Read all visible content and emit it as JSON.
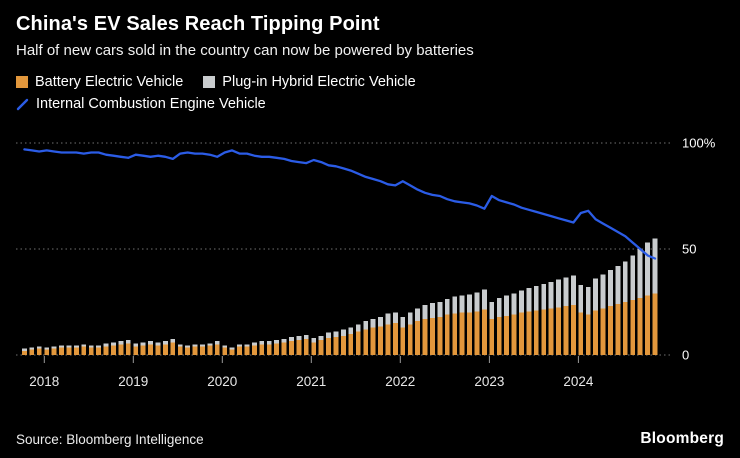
{
  "header": {
    "title": "China's EV Sales Reach Tipping Point",
    "subtitle": "Half of new cars sold in the country can now be powered by batteries"
  },
  "legend": {
    "bev": "Battery Electric Vehicle",
    "phev": "Plug-in Hybrid Electric Vehicle",
    "ice": "Internal Combustion Engine Vehicle"
  },
  "chart_data": {
    "type": "bar",
    "subtype": "stacked-monthly-bars-with-line",
    "x_frequency": "monthly",
    "x_start": "2017-10",
    "x_end": "2024-11",
    "x_tick_labels": [
      "2018",
      "2019",
      "2020",
      "2021",
      "2022",
      "2023",
      "2024"
    ],
    "y_tick_labels": [
      "100%",
      "50",
      "0"
    ],
    "y_tick_values": [
      100,
      50,
      0
    ],
    "ylim": [
      0,
      100
    ],
    "y_unit": "%",
    "grid": "dotted horizontal lines at 0, 50, 100",
    "legend_position": "top-left",
    "series": [
      {
        "name": "Battery Electric Vehicle",
        "color": "#E2973C",
        "values": [
          2.0,
          2.5,
          3.0,
          2.5,
          3.0,
          3.5,
          3.5,
          3.5,
          4.0,
          3.5,
          3.5,
          4.0,
          4.5,
          5.0,
          5.5,
          4.0,
          4.5,
          5.0,
          4.5,
          5.0,
          6.0,
          4.0,
          3.5,
          4.0,
          4.0,
          4.5,
          5.0,
          3.5,
          2.5,
          4.0,
          4.0,
          4.5,
          5.0,
          5.0,
          5.5,
          6.0,
          6.5,
          7.0,
          7.5,
          6.0,
          7.0,
          8.0,
          8.5,
          9.0,
          10.0,
          11.0,
          12.0,
          13.0,
          13.5,
          14.5,
          15.0,
          13.0,
          14.5,
          16.0,
          17.0,
          17.5,
          18.0,
          19.0,
          19.5,
          20.0,
          20.0,
          20.5,
          21.5,
          17.0,
          18.0,
          18.5,
          19.0,
          20.0,
          20.5,
          21.0,
          21.5,
          22.0,
          22.5,
          23.0,
          23.5,
          20.0,
          19.0,
          21.0,
          22.0,
          23.0,
          24.0,
          25.0,
          26.0,
          27.0,
          28.0,
          29.0
        ]
      },
      {
        "name": "Plug-in Hybrid Electric Vehicle",
        "color": "#C9CCCE",
        "values": [
          1.0,
          1.0,
          1.0,
          1.0,
          1.0,
          1.0,
          1.0,
          1.0,
          1.0,
          1.0,
          1.0,
          1.5,
          1.5,
          1.5,
          1.5,
          1.5,
          1.5,
          1.5,
          1.5,
          1.5,
          1.5,
          1.0,
          1.0,
          1.0,
          1.0,
          1.0,
          1.5,
          1.0,
          1.0,
          1.0,
          1.0,
          1.5,
          1.5,
          1.5,
          1.5,
          1.5,
          2.0,
          2.0,
          2.0,
          2.0,
          2.0,
          2.5,
          2.5,
          3.0,
          3.0,
          3.5,
          4.0,
          4.0,
          4.5,
          5.0,
          5.0,
          5.0,
          5.5,
          6.0,
          6.5,
          7.0,
          7.0,
          7.5,
          8.0,
          8.0,
          8.5,
          9.0,
          9.5,
          8.0,
          9.0,
          9.5,
          10.0,
          10.5,
          11.0,
          11.5,
          12.0,
          12.5,
          13.0,
          13.5,
          14.0,
          13.0,
          13.0,
          15.0,
          16.0,
          17.0,
          18.0,
          19.0,
          21.0,
          23.0,
          25.0,
          26.0
        ]
      }
    ],
    "line_series": {
      "name": "Internal Combustion Engine Vehicle",
      "color": "#2B5CE6",
      "values": [
        97.0,
        96.5,
        96.0,
        96.5,
        96.0,
        95.5,
        95.5,
        95.5,
        95.0,
        95.5,
        95.5,
        94.5,
        94.0,
        93.5,
        93.0,
        94.5,
        94.0,
        93.5,
        94.0,
        93.5,
        92.5,
        95.0,
        95.5,
        95.0,
        95.0,
        94.5,
        93.5,
        95.5,
        96.5,
        95.0,
        95.0,
        94.0,
        93.5,
        93.5,
        93.0,
        92.5,
        91.5,
        91.0,
        90.5,
        92.0,
        91.0,
        89.5,
        89.0,
        88.0,
        87.0,
        85.5,
        84.0,
        83.0,
        82.0,
        80.5,
        80.0,
        82.0,
        80.0,
        78.0,
        76.5,
        75.5,
        75.0,
        73.5,
        72.5,
        72.0,
        71.5,
        70.5,
        69.0,
        75.0,
        73.0,
        72.0,
        71.0,
        69.5,
        68.5,
        67.5,
        66.5,
        65.5,
        64.5,
        63.5,
        62.5,
        67.0,
        68.0,
        64.0,
        62.0,
        60.0,
        58.0,
        56.0,
        53.0,
        50.0,
        47.0,
        45.5
      ]
    }
  },
  "footer": {
    "source": "Source: Bloomberg Intelligence",
    "logo": "Bloomberg"
  }
}
